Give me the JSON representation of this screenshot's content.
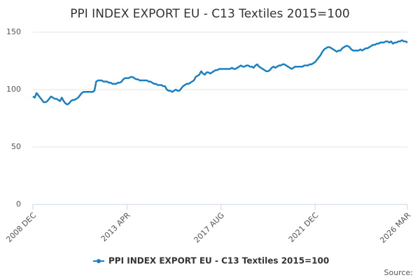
{
  "chart_data": {
    "type": "line",
    "title": "PPI INDEX EXPORT EU - C13 Textiles 2015=100",
    "source": "Source:",
    "categories": [
      "2008 DEC",
      null,
      null,
      null,
      null,
      null,
      null,
      null,
      null,
      null,
      null,
      null,
      null,
      null,
      null,
      null,
      null,
      null,
      null,
      null,
      null,
      null,
      null,
      null,
      null,
      null,
      null,
      null,
      null,
      null,
      null,
      null,
      null,
      null,
      null,
      null,
      null,
      null,
      null,
      null,
      null,
      null,
      null,
      null,
      null,
      null,
      null,
      null,
      null,
      null,
      null,
      null,
      "2013 APR",
      null,
      null,
      null,
      null,
      null,
      null,
      null,
      null,
      null,
      null,
      null,
      null,
      null,
      null,
      null,
      null,
      null,
      null,
      null,
      null,
      null,
      null,
      null,
      null,
      null,
      null,
      null,
      null,
      null,
      null,
      null,
      null,
      null,
      null,
      null,
      null,
      null,
      null,
      null,
      null,
      null,
      null,
      null,
      null,
      null,
      null,
      null,
      null,
      null,
      null,
      null,
      "2017 AUG",
      null,
      null,
      null,
      null,
      null,
      null,
      null,
      null,
      null,
      null,
      null,
      null,
      null,
      null,
      null,
      null,
      null,
      null,
      null,
      null,
      null,
      null,
      null,
      null,
      null,
      null,
      null,
      null,
      null,
      null,
      null,
      null,
      null,
      null,
      null,
      null,
      null,
      null,
      null,
      null,
      null,
      null,
      null,
      null,
      null,
      null,
      null,
      null,
      null,
      null,
      null,
      "2021 DEC",
      null,
      null,
      null,
      null,
      null,
      null,
      null,
      null,
      null,
      null,
      null,
      null,
      null,
      null,
      null,
      null,
      null,
      null,
      null,
      null,
      null,
      null,
      null,
      null,
      null,
      null,
      null,
      null,
      null,
      null,
      null,
      null,
      null,
      null,
      null,
      null,
      null,
      null,
      null,
      null,
      null,
      null,
      null,
      null,
      null,
      null,
      null,
      null,
      null,
      null,
      "2026 MAR"
    ],
    "series": [
      {
        "name": "PPI INDEX EXPORT EU - C13 Textiles 2015=100",
        "color": "#1a80c4",
        "values": [
          94,
          93,
          97,
          95,
          93,
          91,
          89,
          89,
          90,
          92,
          94,
          93,
          92,
          92,
          91,
          90,
          93,
          90,
          88,
          87,
          88,
          90,
          91,
          91,
          92,
          93,
          95,
          97,
          98,
          98,
          98,
          98,
          98,
          98,
          99,
          107,
          108,
          108,
          108,
          107,
          107,
          107,
          106,
          106,
          105,
          105,
          105,
          106,
          106,
          107,
          109,
          110,
          110,
          110,
          111,
          111,
          110,
          109,
          109,
          108,
          108,
          108,
          108,
          108,
          107,
          107,
          106,
          105,
          105,
          104,
          104,
          104,
          103,
          103,
          100,
          99,
          99,
          98,
          99,
          100,
          99,
          99,
          101,
          103,
          104,
          105,
          105,
          106,
          107,
          108,
          111,
          112,
          113,
          116,
          114,
          113,
          115,
          115,
          114,
          115,
          116,
          117,
          117,
          118,
          118,
          118,
          118,
          118,
          118,
          118,
          119,
          118,
          118,
          119,
          120,
          121,
          120,
          120,
          121,
          121,
          120,
          120,
          119,
          121,
          122,
          120,
          119,
          118,
          117,
          116,
          116,
          117,
          119,
          120,
          119,
          120,
          121,
          121,
          122,
          122,
          121,
          120,
          119,
          118,
          119,
          120,
          120,
          120,
          120,
          120,
          121,
          121,
          121,
          122,
          122,
          123,
          124,
          126,
          128,
          130,
          133,
          135,
          136,
          137,
          137,
          136,
          135,
          134,
          133,
          134,
          134,
          136,
          137,
          138,
          138,
          137,
          135,
          134,
          134,
          134,
          134,
          135,
          134,
          135,
          136,
          136,
          137,
          138,
          139,
          139,
          140,
          140,
          141,
          141,
          141,
          142,
          142,
          141,
          142,
          140,
          141,
          141,
          142,
          142,
          143,
          142,
          142,
          141
        ]
      }
    ],
    "ylim": [
      0,
      150
    ],
    "yticks": [
      0,
      50,
      100,
      150
    ],
    "grid": true
  }
}
